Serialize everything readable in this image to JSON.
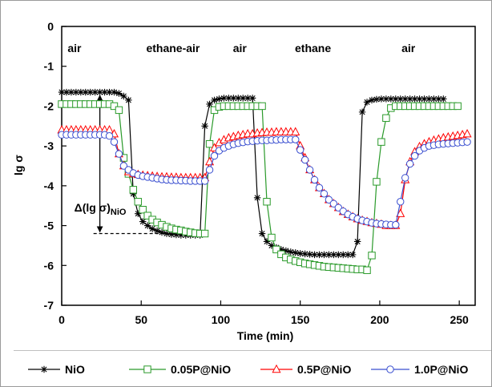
{
  "chart_data": {
    "type": "line",
    "title": "",
    "xlabel": "Time (min)",
    "ylabel": "lg σ",
    "xlim": [
      0,
      260
    ],
    "ylim": [
      -7,
      0
    ],
    "xticks": [
      "0",
      "50",
      "100",
      "150",
      "200",
      "250"
    ],
    "yticks": [
      "0",
      "-1",
      "-2",
      "-3",
      "-4",
      "-5",
      "-6",
      "-7"
    ],
    "grid": false,
    "legend_position": "bottom",
    "phases": [
      {
        "label": "air",
        "x": 8
      },
      {
        "label": "ethane-air",
        "x": 70
      },
      {
        "label": "air",
        "x": 112
      },
      {
        "label": "ethane",
        "x": 158
      },
      {
        "label": "air",
        "x": 218
      }
    ],
    "annotation": {
      "label_main": "Δ(lg σ)",
      "label_sub": "NiO",
      "x": 24,
      "y_from": -1.65,
      "y_to": -5.2,
      "line_x_from": 20,
      "line_x_to": 88
    },
    "series": [
      {
        "name": "NiO",
        "color": "#000000",
        "marker": "star",
        "x": [
          0,
          3,
          6,
          9,
          12,
          15,
          18,
          21,
          24,
          27,
          30,
          33,
          36,
          39,
          42,
          45,
          48,
          51,
          54,
          57,
          60,
          63,
          66,
          69,
          72,
          75,
          78,
          81,
          84,
          87,
          90,
          93,
          96,
          99,
          102,
          105,
          108,
          111,
          114,
          117,
          120,
          123,
          126,
          129,
          132,
          135,
          138,
          141,
          144,
          147,
          150,
          153,
          156,
          159,
          162,
          165,
          168,
          171,
          174,
          177,
          180,
          183,
          186,
          189,
          192,
          195,
          198,
          201,
          204,
          207,
          210,
          213,
          216,
          219,
          222,
          225,
          228,
          231,
          234,
          237,
          240
        ],
        "y": [
          -1.65,
          -1.65,
          -1.65,
          -1.65,
          -1.65,
          -1.65,
          -1.65,
          -1.65,
          -1.65,
          -1.65,
          -1.65,
          -1.65,
          -1.68,
          -1.75,
          -1.85,
          -4.2,
          -4.7,
          -4.9,
          -5.0,
          -5.08,
          -5.13,
          -5.17,
          -5.2,
          -5.22,
          -5.23,
          -5.24,
          -5.24,
          -5.24,
          -5.24,
          -5.24,
          -2.5,
          -1.95,
          -1.85,
          -1.82,
          -1.8,
          -1.8,
          -1.8,
          -1.8,
          -1.8,
          -1.8,
          -1.8,
          -4.3,
          -5.2,
          -5.4,
          -5.5,
          -5.55,
          -5.6,
          -5.63,
          -5.66,
          -5.68,
          -5.7,
          -5.71,
          -5.72,
          -5.73,
          -5.73,
          -5.73,
          -5.73,
          -5.73,
          -5.73,
          -5.73,
          -5.73,
          -5.73,
          -5.4,
          -2.15,
          -1.9,
          -1.85,
          -1.83,
          -1.82,
          -1.82,
          -1.82,
          -1.82,
          -1.82,
          -1.82,
          -1.82,
          -1.82,
          -1.82,
          -1.82,
          -1.82,
          -1.82,
          -1.82,
          -1.82
        ]
      },
      {
        "name": "0.05P@NiO",
        "color": "#2a9a2a",
        "marker": "square",
        "x": [
          0,
          3,
          6,
          9,
          12,
          15,
          18,
          21,
          24,
          27,
          30,
          33,
          36,
          39,
          42,
          45,
          48,
          51,
          54,
          57,
          60,
          63,
          66,
          69,
          72,
          75,
          78,
          81,
          84,
          87,
          90,
          93,
          96,
          99,
          102,
          105,
          108,
          111,
          114,
          117,
          120,
          123,
          126,
          129,
          132,
          135,
          138,
          141,
          144,
          147,
          150,
          153,
          156,
          159,
          162,
          165,
          168,
          171,
          174,
          177,
          180,
          183,
          186,
          189,
          192,
          195,
          198,
          201,
          204,
          207,
          210,
          213,
          216,
          219,
          222,
          225,
          228,
          231,
          234,
          237,
          240,
          243,
          246,
          249
        ],
        "y": [
          -1.95,
          -1.95,
          -1.95,
          -1.95,
          -1.95,
          -1.95,
          -1.95,
          -1.95,
          -1.95,
          -1.95,
          -1.95,
          -2.0,
          -2.1,
          -3.3,
          -3.7,
          -4.1,
          -4.4,
          -4.6,
          -4.75,
          -4.85,
          -4.92,
          -4.98,
          -5.03,
          -5.07,
          -5.1,
          -5.12,
          -5.15,
          -5.17,
          -5.19,
          -5.2,
          -5.2,
          -2.95,
          -2.1,
          -2.02,
          -2.0,
          -2.0,
          -2.0,
          -2.0,
          -2.0,
          -2.0,
          -2.0,
          -2.0,
          -2.0,
          -4.4,
          -5.3,
          -5.6,
          -5.72,
          -5.8,
          -5.85,
          -5.89,
          -5.92,
          -5.95,
          -5.97,
          -5.99,
          -6.01,
          -6.03,
          -6.04,
          -6.05,
          -6.06,
          -6.07,
          -6.08,
          -6.09,
          -6.1,
          -6.1,
          -6.12,
          -5.75,
          -3.9,
          -2.9,
          -2.3,
          -2.05,
          -2.0,
          -2.0,
          -2.0,
          -2.0,
          -2.0,
          -2.0,
          -2.0,
          -2.0,
          -2.0,
          -2.0,
          -2.0,
          -2.0,
          -2.0,
          -2.0
        ]
      },
      {
        "name": "0.5P@NiO",
        "color": "#ff0000",
        "marker": "triangle",
        "x": [
          0,
          3,
          6,
          9,
          12,
          15,
          18,
          21,
          24,
          27,
          30,
          33,
          36,
          39,
          42,
          45,
          48,
          51,
          54,
          57,
          60,
          63,
          66,
          69,
          72,
          75,
          78,
          81,
          84,
          87,
          90,
          93,
          96,
          99,
          102,
          105,
          108,
          111,
          114,
          117,
          120,
          123,
          126,
          129,
          132,
          135,
          138,
          141,
          144,
          147,
          150,
          153,
          156,
          159,
          162,
          165,
          168,
          171,
          174,
          177,
          180,
          183,
          186,
          189,
          192,
          195,
          198,
          201,
          204,
          207,
          210,
          213,
          216,
          219,
          222,
          225,
          228,
          231,
          234,
          237,
          240,
          243,
          246,
          249,
          252,
          255
        ],
        "y": [
          -2.6,
          -2.6,
          -2.6,
          -2.6,
          -2.6,
          -2.6,
          -2.6,
          -2.6,
          -2.6,
          -2.6,
          -2.6,
          -2.7,
          -3.2,
          -3.5,
          -3.65,
          -3.7,
          -3.72,
          -3.74,
          -3.75,
          -3.76,
          -3.77,
          -3.78,
          -3.78,
          -3.79,
          -3.79,
          -3.8,
          -3.8,
          -3.8,
          -3.8,
          -3.8,
          -3.8,
          -3.4,
          -3.05,
          -2.92,
          -2.85,
          -2.8,
          -2.77,
          -2.74,
          -2.72,
          -2.7,
          -2.7,
          -2.68,
          -2.67,
          -2.66,
          -2.66,
          -2.65,
          -2.65,
          -2.65,
          -2.65,
          -2.65,
          -3.0,
          -3.3,
          -3.6,
          -3.85,
          -4.05,
          -4.2,
          -4.35,
          -4.45,
          -4.55,
          -4.65,
          -4.72,
          -4.78,
          -4.83,
          -4.87,
          -4.9,
          -4.93,
          -4.95,
          -4.97,
          -5.0,
          -5.0,
          -5.0,
          -4.7,
          -3.85,
          -3.4,
          -3.15,
          -3.02,
          -2.95,
          -2.9,
          -2.86,
          -2.83,
          -2.8,
          -2.78,
          -2.76,
          -2.74,
          -2.72,
          -2.7
        ]
      },
      {
        "name": "1.0P@NiO",
        "color": "#3a4fd0",
        "marker": "circle",
        "x": [
          0,
          3,
          6,
          9,
          12,
          15,
          18,
          21,
          24,
          27,
          30,
          33,
          36,
          39,
          42,
          45,
          48,
          51,
          54,
          57,
          60,
          63,
          66,
          69,
          72,
          75,
          78,
          81,
          84,
          87,
          90,
          93,
          96,
          99,
          102,
          105,
          108,
          111,
          114,
          117,
          120,
          123,
          126,
          129,
          132,
          135,
          138,
          141,
          144,
          147,
          150,
          153,
          156,
          159,
          162,
          165,
          168,
          171,
          174,
          177,
          180,
          183,
          186,
          189,
          192,
          195,
          198,
          201,
          204,
          207,
          210,
          213,
          216,
          219,
          222,
          225,
          228,
          231,
          234,
          237,
          240,
          243,
          246,
          249,
          252,
          255
        ],
        "y": [
          -2.72,
          -2.72,
          -2.72,
          -2.72,
          -2.72,
          -2.72,
          -2.72,
          -2.72,
          -2.72,
          -2.72,
          -2.75,
          -2.9,
          -3.2,
          -3.5,
          -3.6,
          -3.68,
          -3.73,
          -3.76,
          -3.78,
          -3.8,
          -3.82,
          -3.84,
          -3.85,
          -3.86,
          -3.86,
          -3.87,
          -3.87,
          -3.88,
          -3.88,
          -3.88,
          -3.88,
          -3.6,
          -3.25,
          -3.12,
          -3.05,
          -3.0,
          -2.96,
          -2.93,
          -2.91,
          -2.89,
          -2.88,
          -2.87,
          -2.86,
          -2.86,
          -2.85,
          -2.85,
          -2.84,
          -2.84,
          -2.84,
          -2.84,
          -3.1,
          -3.35,
          -3.6,
          -3.85,
          -4.05,
          -4.2,
          -4.35,
          -4.45,
          -4.55,
          -4.64,
          -4.72,
          -4.78,
          -4.83,
          -4.87,
          -4.9,
          -4.93,
          -4.95,
          -4.96,
          -4.97,
          -4.98,
          -4.98,
          -4.4,
          -3.8,
          -3.45,
          -3.25,
          -3.12,
          -3.05,
          -3.0,
          -2.98,
          -2.96,
          -2.95,
          -2.94,
          -2.93,
          -2.92,
          -2.91,
          -2.9
        ]
      }
    ]
  }
}
